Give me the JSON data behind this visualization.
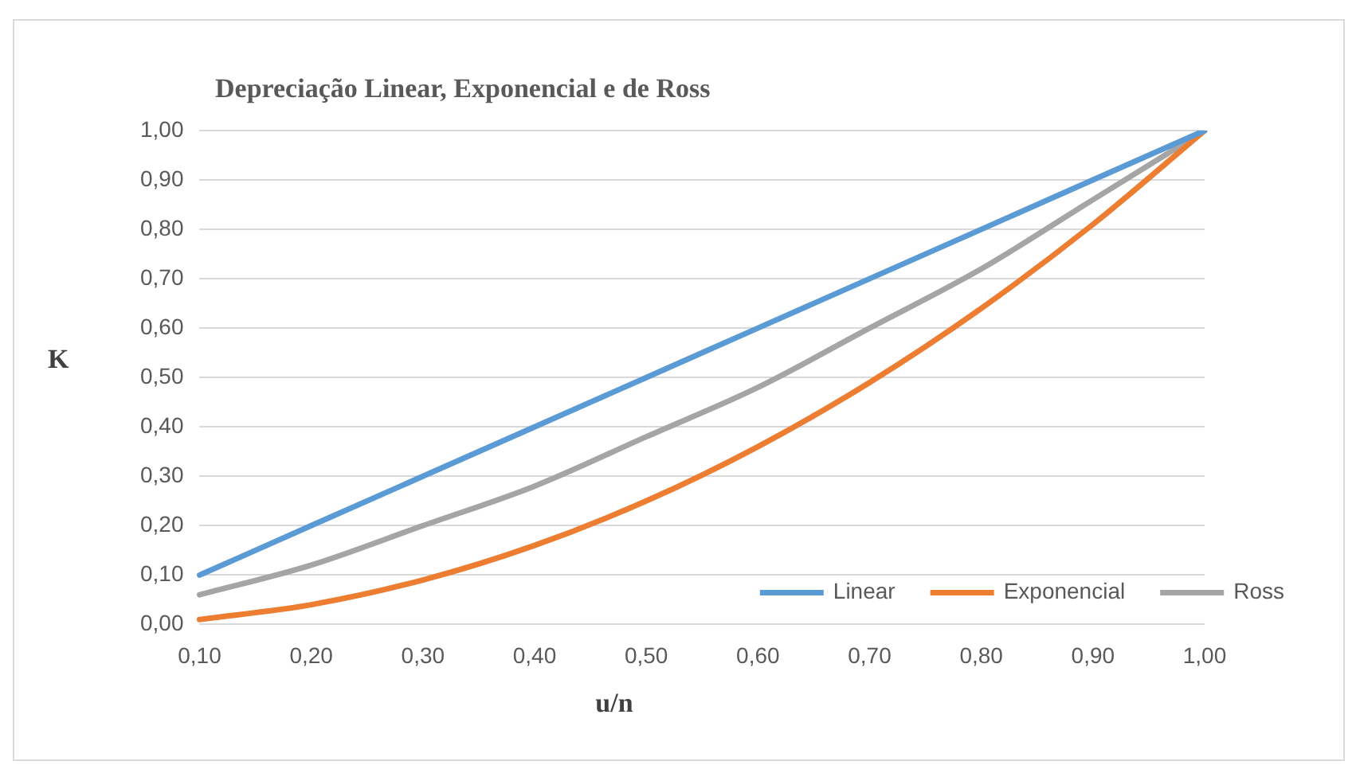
{
  "chart_data": {
    "type": "line",
    "title": "Depreciação Linear, Exponencial e de Ross",
    "xlabel": "u/n",
    "ylabel": "K",
    "categories": [
      "0,10",
      "0,20",
      "0,30",
      "0,40",
      "0,50",
      "0,60",
      "0,70",
      "0,80",
      "0,90",
      "1,00"
    ],
    "series": [
      {
        "name": "Linear",
        "color": "#5b9bd5",
        "values": [
          0.1,
          0.2,
          0.3,
          0.4,
          0.5,
          0.6,
          0.7,
          0.8,
          0.9,
          1.0
        ]
      },
      {
        "name": "Exponencial",
        "color": "#ed7d31",
        "values": [
          0.01,
          0.04,
          0.09,
          0.16,
          0.25,
          0.36,
          0.49,
          0.64,
          0.81,
          1.0
        ]
      },
      {
        "name": "Ross",
        "color": "#a5a5a5",
        "values": [
          0.06,
          0.12,
          0.2,
          0.28,
          0.38,
          0.48,
          0.6,
          0.72,
          0.86,
          1.0
        ]
      }
    ],
    "ylim": [
      0,
      1
    ],
    "yticks": [
      {
        "value": 0,
        "label": "0,00"
      },
      {
        "value": 0.1,
        "label": "0,10"
      },
      {
        "value": 0.2,
        "label": "0,20"
      },
      {
        "value": 0.3,
        "label": "0,30"
      },
      {
        "value": 0.4,
        "label": "0,40"
      },
      {
        "value": 0.5,
        "label": "0,50"
      },
      {
        "value": 0.6,
        "label": "0,60"
      },
      {
        "value": 0.7,
        "label": "0,70"
      },
      {
        "value": 0.8,
        "label": "0,80"
      },
      {
        "value": 0.9,
        "label": "0,90"
      },
      {
        "value": 1,
        "label": "1,00"
      }
    ],
    "grid": "y",
    "legend": "bottom right",
    "marker": "none",
    "line_style": "solid"
  }
}
